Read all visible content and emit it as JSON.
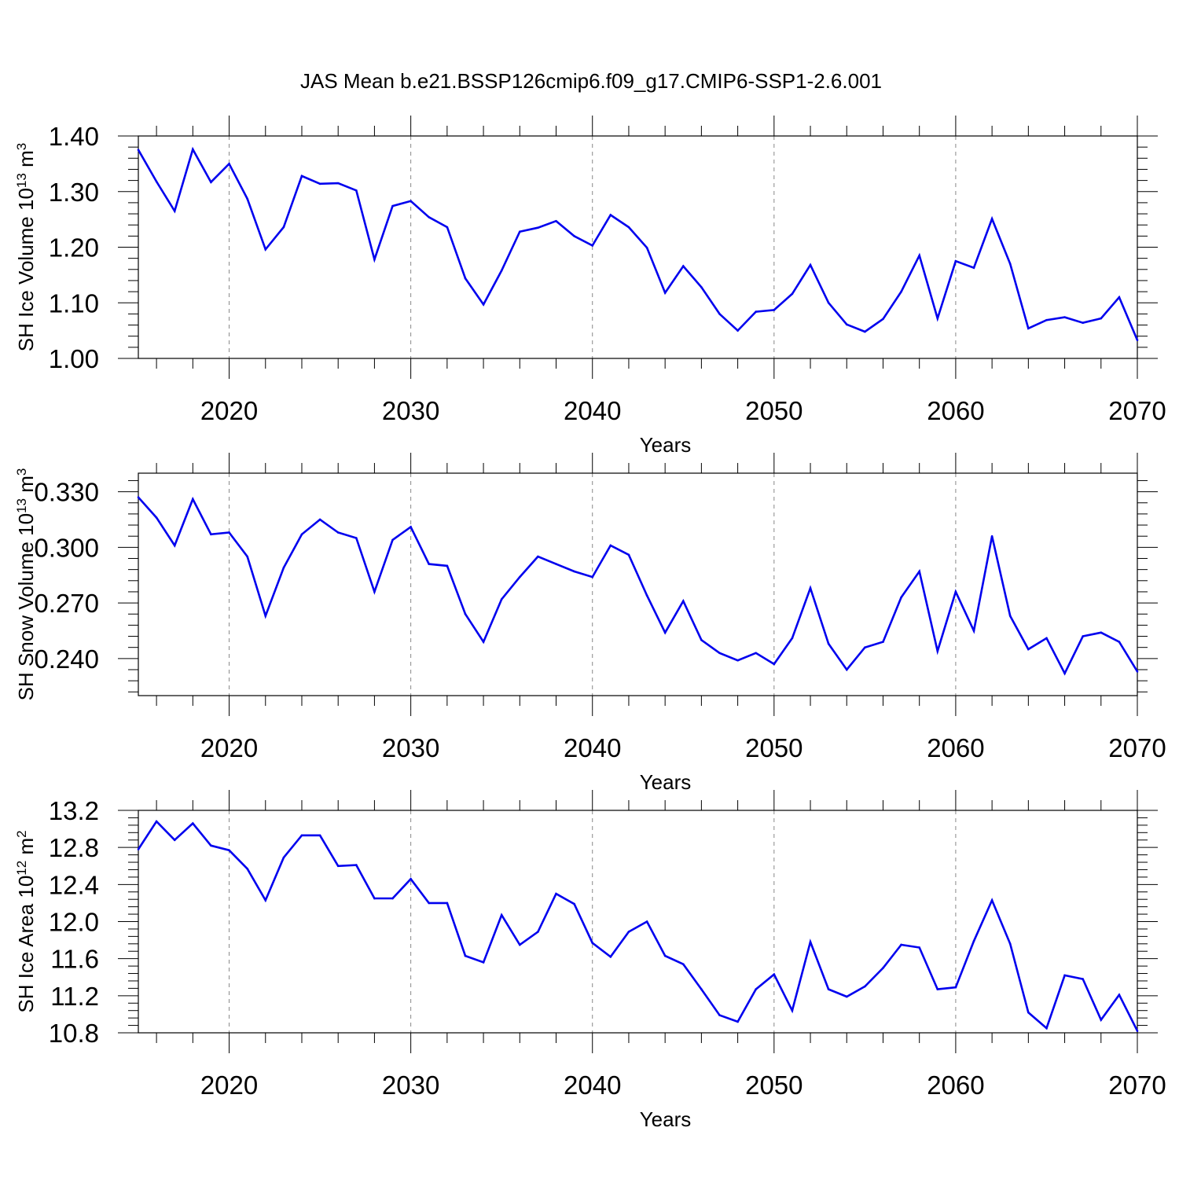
{
  "figure": {
    "title": "JAS Mean b.e21.BSSP126cmip6.f09_g17.CMIP6-SSP1-2.6.001"
  },
  "colors": {
    "line": "#0000ee",
    "frame": "#000000",
    "grid": "#888888"
  },
  "chart_data": [
    {
      "type": "line",
      "xlabel": "Years",
      "ylabel": "SH Ice Volume 10",
      "ylabel_exp": "13",
      "ylabel_unit": " m",
      "ylabel_unit_exp": "3",
      "xlim": [
        2015,
        2070
      ],
      "ylim": [
        1.0,
        1.4
      ],
      "xticks": [
        2020,
        2030,
        2040,
        2050,
        2060,
        2070
      ],
      "yticks": [
        1.0,
        1.1,
        1.2,
        1.3,
        1.4
      ],
      "ytick_labels": [
        "1.00",
        "1.10",
        "1.20",
        "1.30",
        "1.40"
      ],
      "grid": "vertical dashed at major x ticks",
      "x": [
        2015,
        2016,
        2017,
        2018,
        2019,
        2020,
        2021,
        2022,
        2023,
        2024,
        2025,
        2026,
        2027,
        2028,
        2029,
        2030,
        2031,
        2032,
        2033,
        2034,
        2035,
        2036,
        2037,
        2038,
        2039,
        2040,
        2041,
        2042,
        2043,
        2044,
        2045,
        2046,
        2047,
        2048,
        2049,
        2050,
        2051,
        2052,
        2053,
        2054,
        2055,
        2056,
        2057,
        2058,
        2059,
        2060,
        2061,
        2062,
        2063,
        2064,
        2065,
        2066,
        2067,
        2068,
        2069,
        2070
      ],
      "values": [
        1.375,
        1.318,
        1.265,
        1.376,
        1.317,
        1.35,
        1.287,
        1.196,
        1.236,
        1.328,
        1.314,
        1.315,
        1.302,
        1.178,
        1.274,
        1.283,
        1.254,
        1.236,
        1.144,
        1.097,
        1.158,
        1.228,
        1.235,
        1.247,
        1.22,
        1.203,
        1.258,
        1.236,
        1.199,
        1.118,
        1.166,
        1.128,
        1.08,
        1.05,
        1.084,
        1.087,
        1.116,
        1.168,
        1.1,
        1.061,
        1.048,
        1.071,
        1.12,
        1.185,
        1.072,
        1.175,
        1.163,
        1.251,
        1.17,
        1.054,
        1.069,
        1.074,
        1.064,
        1.072,
        1.11,
        1.033
      ]
    },
    {
      "type": "line",
      "xlabel": "Years",
      "ylabel": "SH Snow Volume 10",
      "ylabel_exp": "13",
      "ylabel_unit": " m",
      "ylabel_unit_exp": "3",
      "xlim": [
        2015,
        2070
      ],
      "ylim": [
        0.22,
        0.34
      ],
      "xticks": [
        2020,
        2030,
        2040,
        2050,
        2060,
        2070
      ],
      "yticks": [
        0.24,
        0.27,
        0.3,
        0.33
      ],
      "ytick_labels": [
        "0.240",
        "0.270",
        "0.300",
        "0.330"
      ],
      "grid": "vertical dashed at major x ticks",
      "x": [
        2015,
        2016,
        2017,
        2018,
        2019,
        2020,
        2021,
        2022,
        2023,
        2024,
        2025,
        2026,
        2027,
        2028,
        2029,
        2030,
        2031,
        2032,
        2033,
        2034,
        2035,
        2036,
        2037,
        2038,
        2039,
        2040,
        2041,
        2042,
        2043,
        2044,
        2045,
        2046,
        2047,
        2048,
        2049,
        2050,
        2051,
        2052,
        2053,
        2054,
        2055,
        2056,
        2057,
        2058,
        2059,
        2060,
        2061,
        2062,
        2063,
        2064,
        2065,
        2066,
        2067,
        2068,
        2069,
        2070
      ],
      "values": [
        0.327,
        0.316,
        0.301,
        0.326,
        0.307,
        0.308,
        0.295,
        0.263,
        0.289,
        0.307,
        0.315,
        0.308,
        0.305,
        0.276,
        0.304,
        0.311,
        0.291,
        0.29,
        0.264,
        0.249,
        0.272,
        0.284,
        0.295,
        0.291,
        0.287,
        0.284,
        0.301,
        0.296,
        0.274,
        0.254,
        0.271,
        0.25,
        0.243,
        0.239,
        0.243,
        0.237,
        0.251,
        0.278,
        0.248,
        0.234,
        0.246,
        0.249,
        0.273,
        0.287,
        0.244,
        0.276,
        0.255,
        0.306,
        0.263,
        0.245,
        0.251,
        0.232,
        0.252,
        0.254,
        0.249,
        0.233
      ]
    },
    {
      "type": "line",
      "xlabel": "Years",
      "ylabel": "SH Ice Area 10",
      "ylabel_exp": "12",
      "ylabel_unit": " m",
      "ylabel_unit_exp": "2",
      "xlim": [
        2015,
        2070
      ],
      "ylim": [
        10.8,
        13.2
      ],
      "xticks": [
        2020,
        2030,
        2040,
        2050,
        2060,
        2070
      ],
      "yticks": [
        10.8,
        11.2,
        11.6,
        12.0,
        12.4,
        12.8,
        13.2
      ],
      "ytick_labels": [
        "10.8",
        "11.2",
        "11.6",
        "12.0",
        "12.4",
        "12.8",
        "13.2"
      ],
      "grid": "vertical dashed at major x ticks",
      "x": [
        2015,
        2016,
        2017,
        2018,
        2019,
        2020,
        2021,
        2022,
        2023,
        2024,
        2025,
        2026,
        2027,
        2028,
        2029,
        2030,
        2031,
        2032,
        2033,
        2034,
        2035,
        2036,
        2037,
        2038,
        2039,
        2040,
        2041,
        2042,
        2043,
        2044,
        2045,
        2046,
        2047,
        2048,
        2049,
        2050,
        2051,
        2052,
        2053,
        2054,
        2055,
        2056,
        2057,
        2058,
        2059,
        2060,
        2061,
        2062,
        2063,
        2064,
        2065,
        2066,
        2067,
        2068,
        2069,
        2070
      ],
      "values": [
        12.78,
        13.08,
        12.88,
        13.06,
        12.82,
        12.77,
        12.57,
        12.23,
        12.69,
        12.93,
        12.93,
        12.6,
        12.61,
        12.25,
        12.25,
        12.46,
        12.2,
        12.2,
        11.63,
        11.56,
        12.07,
        11.75,
        11.89,
        12.3,
        12.19,
        11.77,
        11.62,
        11.89,
        12.0,
        11.63,
        11.54,
        11.27,
        10.99,
        10.92,
        11.27,
        11.43,
        11.04,
        11.78,
        11.27,
        11.19,
        11.3,
        11.5,
        11.75,
        11.72,
        11.27,
        11.29,
        11.79,
        12.23,
        11.76,
        11.02,
        10.85,
        11.42,
        11.38,
        10.94,
        11.21,
        10.82
      ]
    }
  ]
}
